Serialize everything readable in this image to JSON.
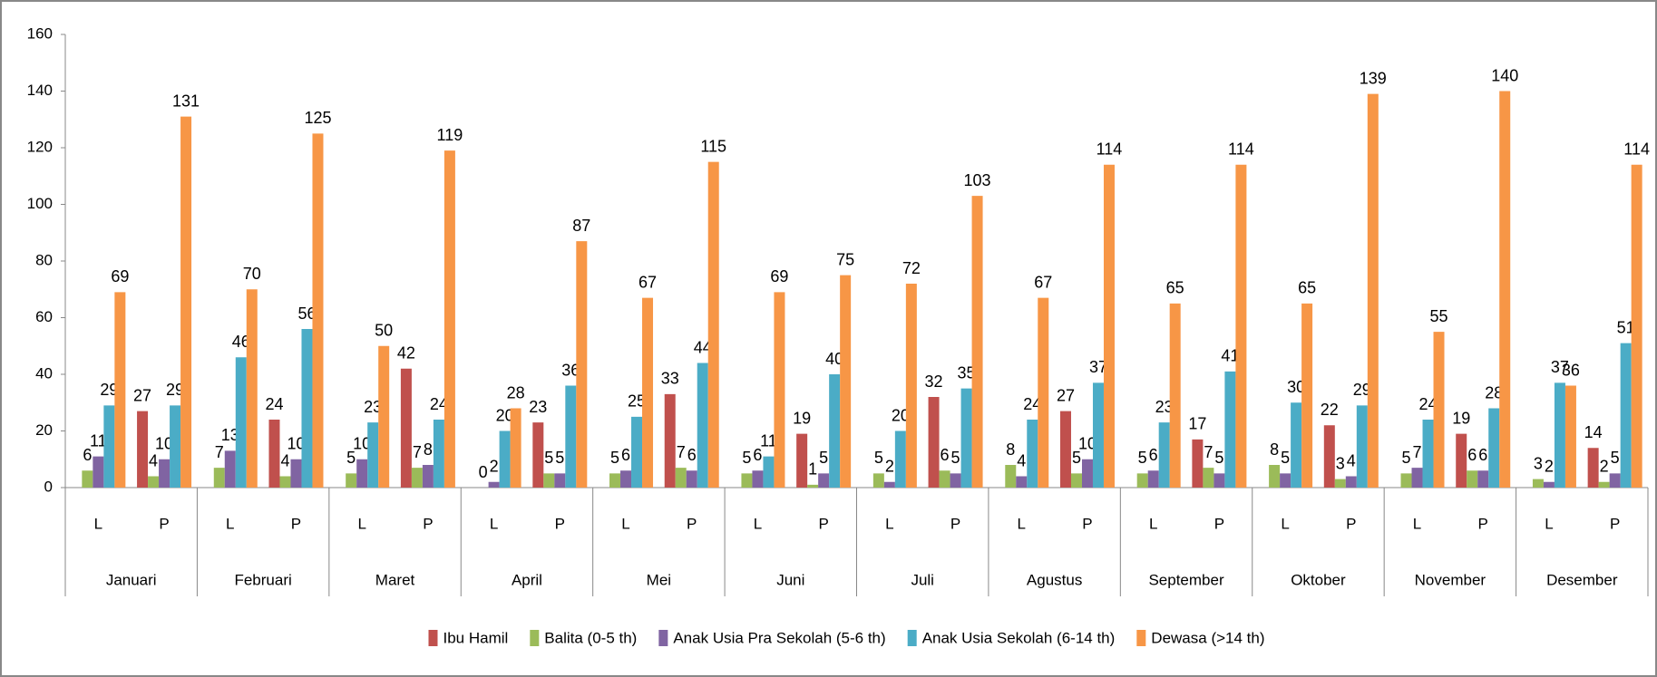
{
  "chart_data": {
    "type": "bar",
    "groups": [
      "Januari",
      "Februari",
      "Maret",
      "April",
      "Mei",
      "Juni",
      "Juli",
      "Agustus",
      "September",
      "Oktober",
      "November",
      "Desember"
    ],
    "categories": [
      "L",
      "P",
      "L",
      "P",
      "L",
      "P",
      "L",
      "P",
      "L",
      "P",
      "L",
      "P",
      "L",
      "P",
      "L",
      "P",
      "L",
      "P",
      "L",
      "P",
      "L",
      "P",
      "L",
      "P"
    ],
    "series": [
      {
        "name": "Ibu Hamil",
        "color": "#c0504d",
        "values": [
          null,
          27,
          null,
          24,
          null,
          42,
          null,
          23,
          null,
          33,
          null,
          19,
          null,
          32,
          null,
          27,
          null,
          17,
          null,
          22,
          null,
          19,
          null,
          14
        ]
      },
      {
        "name": "Balita (0-5 th)",
        "color": "#9bbb59",
        "values": [
          6,
          4,
          7,
          4,
          5,
          7,
          0,
          5,
          5,
          7,
          5,
          1,
          5,
          6,
          8,
          5,
          5,
          7,
          8,
          3,
          5,
          6,
          3,
          2
        ]
      },
      {
        "name": "Anak Usia Pra Sekolah (5-6 th)",
        "color": "#8064a2",
        "values": [
          11,
          10,
          13,
          10,
          10,
          8,
          2,
          5,
          6,
          6,
          6,
          5,
          2,
          5,
          4,
          10,
          6,
          5,
          5,
          4,
          7,
          6,
          2,
          5
        ]
      },
      {
        "name": "Anak Usia Sekolah (6-14 th)",
        "color": "#4bacc6",
        "values": [
          29,
          29,
          46,
          56,
          23,
          24,
          20,
          36,
          25,
          44,
          11,
          40,
          20,
          35,
          24,
          37,
          23,
          41,
          30,
          29,
          24,
          28,
          37,
          51
        ]
      },
      {
        "name": "Dewasa (>14 th)",
        "color": "#f79646",
        "values": [
          69,
          131,
          70,
          125,
          50,
          119,
          28,
          87,
          67,
          115,
          69,
          75,
          72,
          103,
          67,
          114,
          65,
          114,
          65,
          139,
          55,
          140,
          36,
          114
        ]
      }
    ],
    "ylim": [
      0,
      160
    ],
    "yticks": [
      0,
      20,
      40,
      60,
      80,
      100,
      120,
      140,
      160
    ],
    "legend": "bottom"
  }
}
